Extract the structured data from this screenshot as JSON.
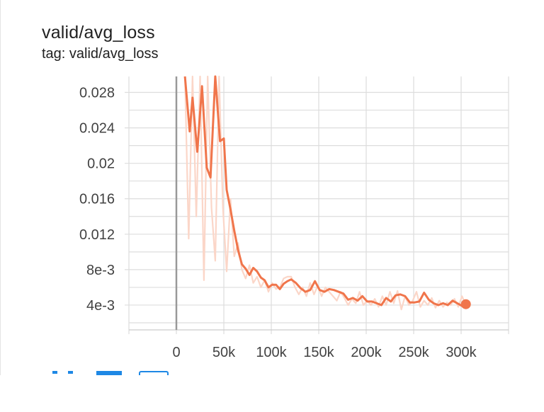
{
  "card": {
    "title": "valid/avg_loss",
    "subtitle": "tag: valid/avg_loss"
  },
  "colors": {
    "smoothed": "#f0754b",
    "raw": "#fbd6c8",
    "grid": "#dddddd",
    "axis": "#999999"
  },
  "toolbar": {
    "icons": [
      "fit-domain-icon",
      "show-data-icon",
      "log-scale-icon"
    ]
  },
  "chart_data": {
    "type": "line",
    "title": "valid/avg_loss",
    "xlabel": "",
    "ylabel": "",
    "xlim": [
      -50000,
      350000
    ],
    "ylim": [
      0.0012,
      0.0298
    ],
    "x_ticks": [
      0,
      50000,
      100000,
      150000,
      200000,
      250000,
      300000
    ],
    "x_tick_labels": [
      "0",
      "50k",
      "100k",
      "150k",
      "200k",
      "250k",
      "300k"
    ],
    "y_ticks": [
      0.004,
      0.008,
      0.012,
      0.016,
      0.02,
      0.024,
      0.028
    ],
    "y_tick_labels": [
      "4e-3",
      "8e-3",
      "0.012",
      "0.016",
      "0.02",
      "0.024",
      "0.028"
    ],
    "grid": true,
    "series": [
      {
        "role": "smoothed",
        "x": [
          9000,
          14000,
          17000,
          22000,
          27000,
          32000,
          36000,
          41000,
          46000,
          50000,
          53000,
          57000,
          61000,
          65000,
          69000,
          73000,
          77000,
          81000,
          85000,
          89000,
          93000,
          97000,
          101000,
          105000,
          109000,
          113000,
          117000,
          121000,
          126000,
          131000,
          136000,
          141000,
          146000,
          151000,
          156000,
          161000,
          166000,
          171000,
          176000,
          181000,
          186000,
          191000,
          196000,
          201000,
          206000,
          211000,
          216000,
          221000,
          226000,
          231000,
          236000,
          241000,
          246000,
          251000,
          256000,
          261000,
          266000,
          271000,
          276000,
          281000,
          286000,
          291000,
          296000,
          301000,
          305000
        ],
        "y": [
          0.0298,
          0.0236,
          0.0274,
          0.0213,
          0.0287,
          0.0195,
          0.0184,
          0.0298,
          0.0225,
          0.0228,
          0.017,
          0.0148,
          0.0124,
          0.0102,
          0.0086,
          0.0081,
          0.0074,
          0.0082,
          0.0078,
          0.0071,
          0.0068,
          0.006,
          0.0063,
          0.0063,
          0.0058,
          0.0064,
          0.0067,
          0.0069,
          0.0065,
          0.0059,
          0.0055,
          0.0057,
          0.0067,
          0.0057,
          0.0055,
          0.0058,
          0.0057,
          0.0055,
          0.0053,
          0.0046,
          0.0048,
          0.0045,
          0.005,
          0.0044,
          0.0044,
          0.0042,
          0.004,
          0.0048,
          0.0044,
          0.0051,
          0.0052,
          0.005,
          0.0043,
          0.0043,
          0.0044,
          0.0054,
          0.0046,
          0.0042,
          0.004,
          0.0042,
          0.004,
          0.0045,
          0.0042,
          0.0039,
          0.0041
        ]
      },
      {
        "role": "raw",
        "x": [
          9000,
          13000,
          17000,
          21000,
          25000,
          29000,
          33000,
          37000,
          41000,
          45000,
          49000,
          53000,
          57000,
          61000,
          65000,
          69000,
          73000,
          77000,
          81000,
          85000,
          89000,
          93000,
          97000,
          101000,
          105000,
          109000,
          113000,
          117000,
          121000,
          125000,
          129000,
          133000,
          137000,
          141000,
          145000,
          149000,
          153000,
          157000,
          161000,
          165000,
          169000,
          173000,
          177000,
          181000,
          185000,
          189000,
          193000,
          197000,
          201000,
          205000,
          209000,
          213000,
          217000,
          221000,
          225000,
          229000,
          233000,
          237000,
          241000,
          245000,
          249000,
          253000,
          257000,
          261000,
          265000,
          269000,
          273000,
          277000,
          281000,
          285000,
          289000,
          293000,
          297000,
          301000,
          305000
        ],
        "y": [
          0.0298,
          0.0115,
          0.0298,
          0.014,
          0.0298,
          0.0068,
          0.0298,
          0.015,
          0.009,
          0.0298,
          0.015,
          0.0078,
          0.016,
          0.0095,
          0.011,
          0.008,
          0.007,
          0.0085,
          0.0065,
          0.0072,
          0.006,
          0.0068,
          0.0055,
          0.0065,
          0.0058,
          0.006,
          0.007,
          0.0072,
          0.0072,
          0.006,
          0.0052,
          0.006,
          0.005,
          0.0065,
          0.0052,
          0.0062,
          0.005,
          0.006,
          0.0055,
          0.005,
          0.0045,
          0.0055,
          0.0048,
          0.004,
          0.0047,
          0.0042,
          0.0055,
          0.004,
          0.0045,
          0.004,
          0.0047,
          0.0038,
          0.005,
          0.004,
          0.0055,
          0.0042,
          0.0056,
          0.0035,
          0.005,
          0.004,
          0.0045,
          0.0055,
          0.0038,
          0.0045,
          0.004,
          0.0048,
          0.0037,
          0.0045,
          0.0038,
          0.0043,
          0.004,
          0.0047,
          0.0038,
          0.005,
          0.004
        ]
      }
    ]
  }
}
